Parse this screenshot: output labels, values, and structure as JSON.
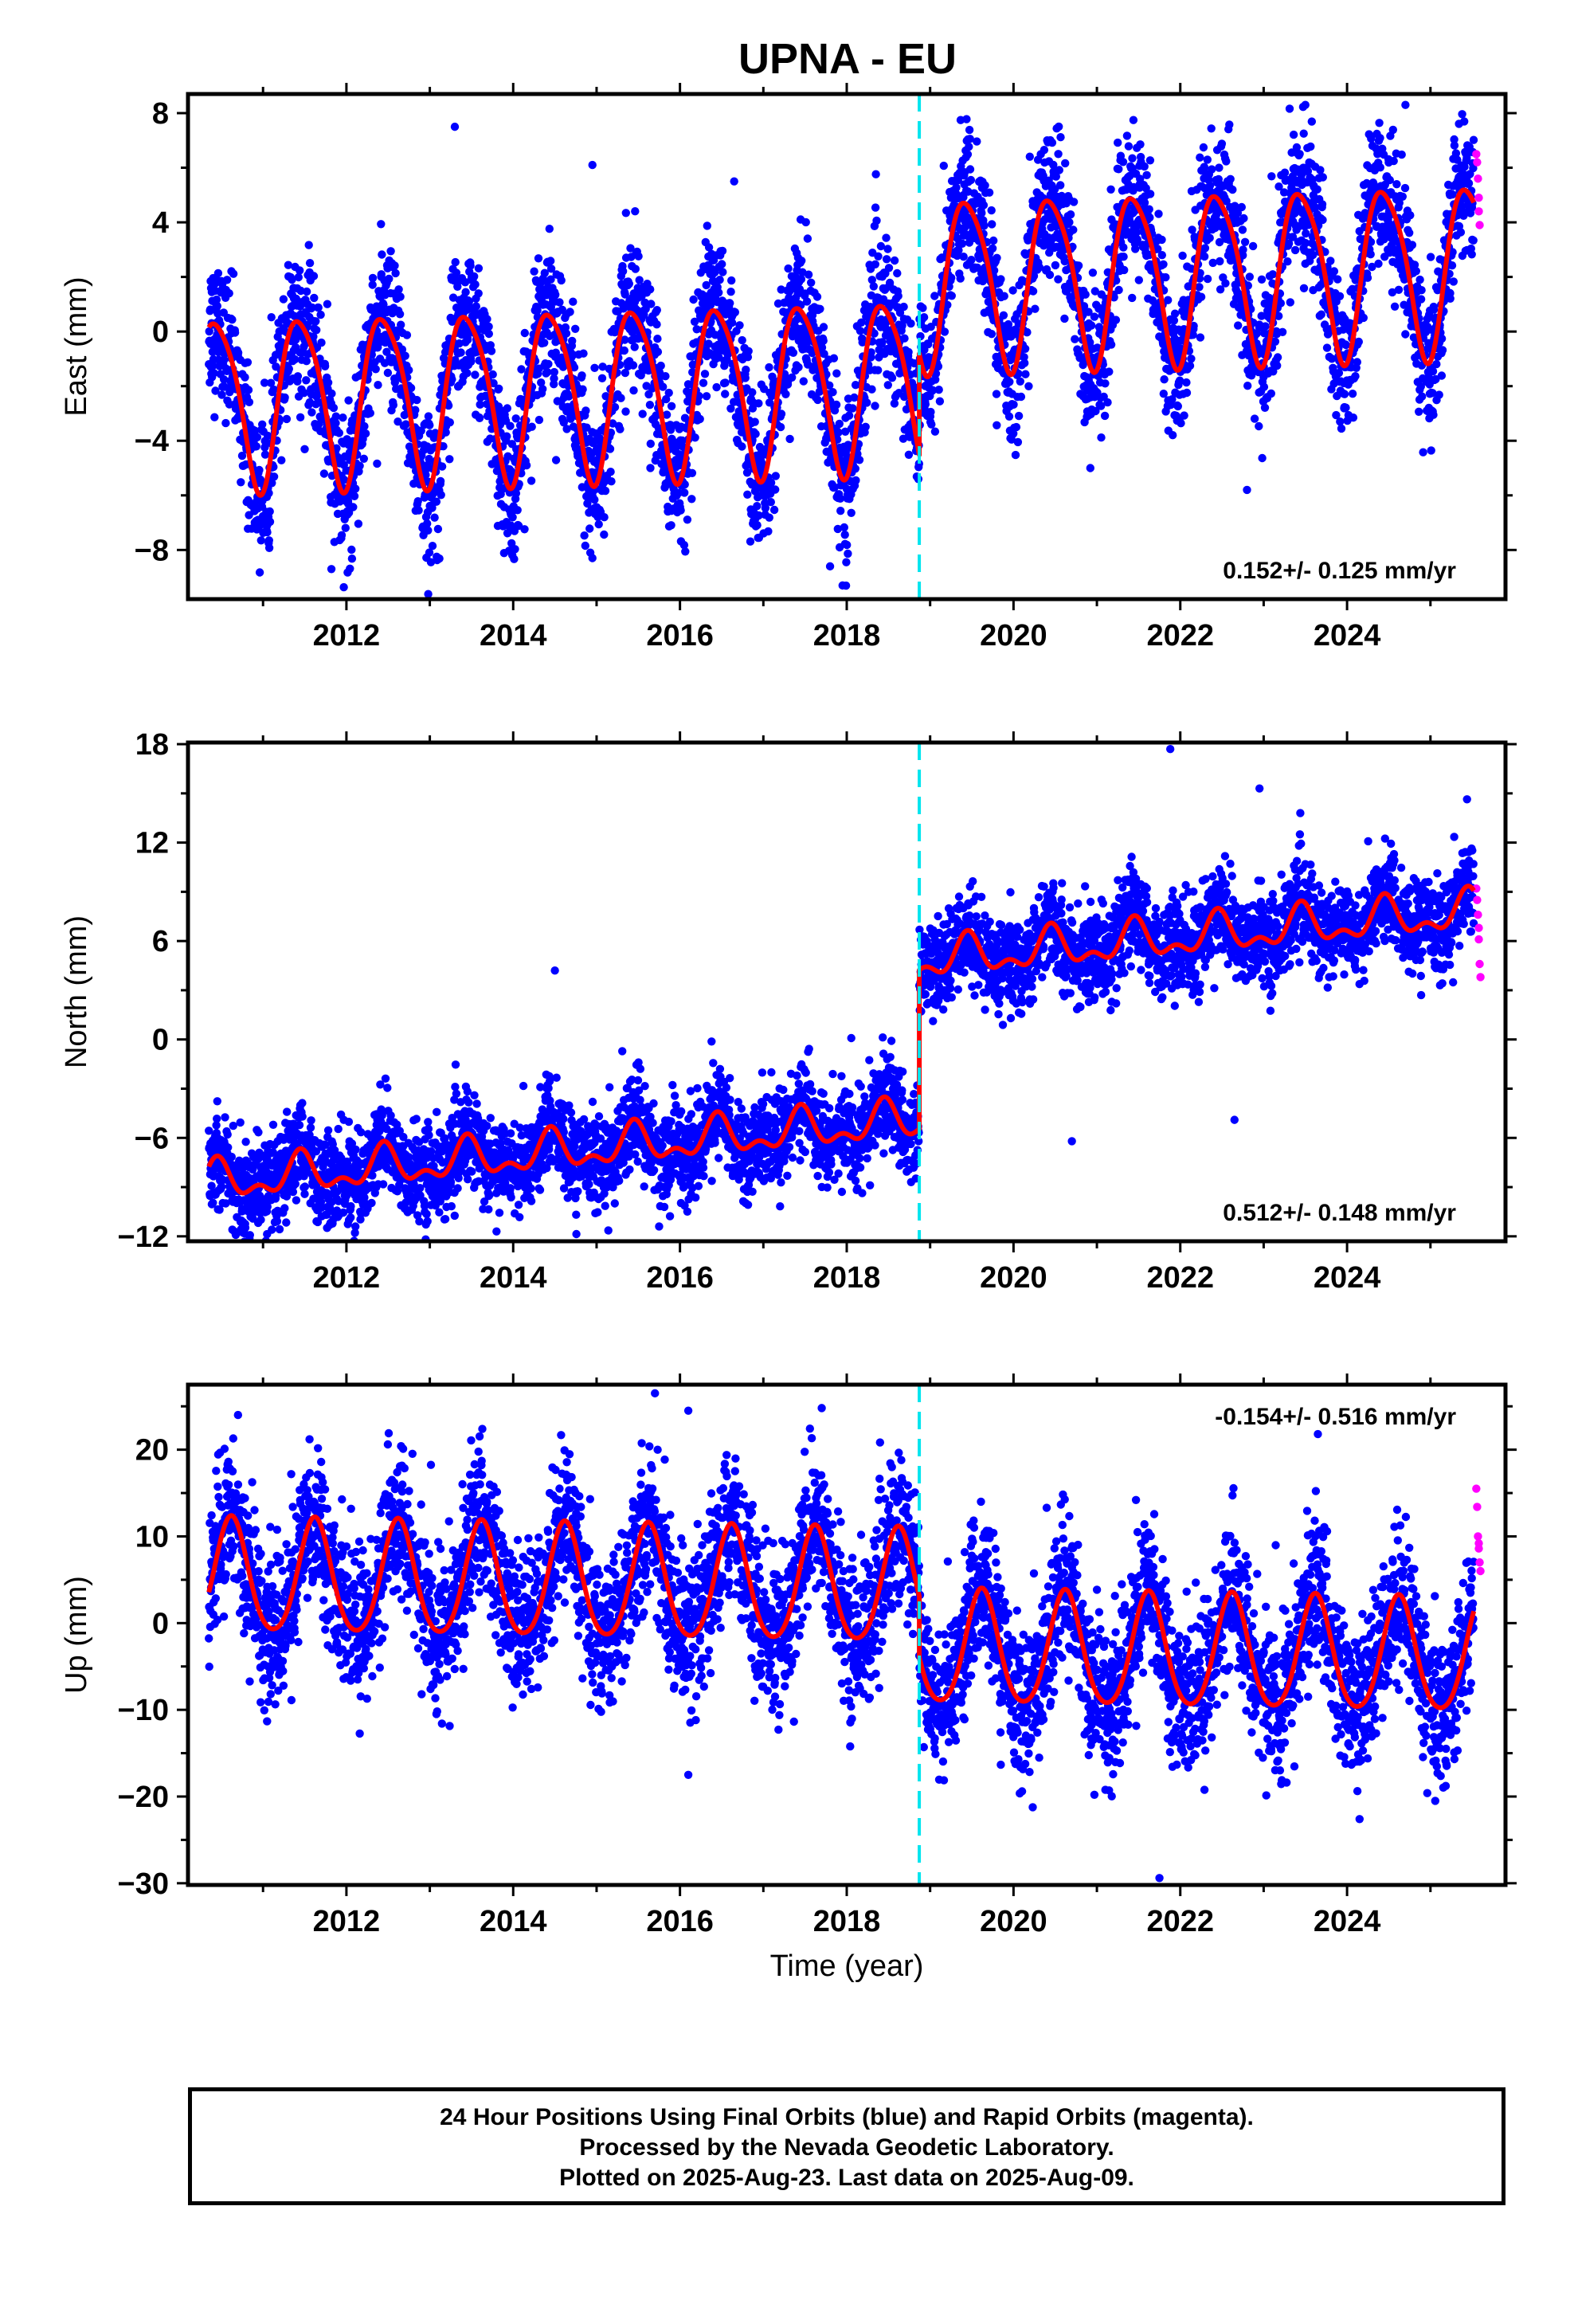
{
  "title": "UPNA - EU",
  "colors": {
    "final_orbits": "#0000ff",
    "rapid_orbits": "#ff00ff",
    "model_fit": "#ff0000",
    "equipment_change": "#00e5ee"
  },
  "footer": {
    "line1": "24 Hour Positions Using Final Orbits (blue) and Rapid Orbits (magenta).",
    "line2": "Processed by the Nevada Geodetic Laboratory.",
    "line3": "Plotted on 2025-Aug-23. Last data on 2025-Aug-09."
  },
  "chart_data": [
    {
      "type": "scatter",
      "component": "east",
      "title": "UPNA - EU",
      "xlabel": "",
      "ylabel": "East (mm)",
      "xlim": [
        2010.1,
        2025.9
      ],
      "ylim": [
        -9.8,
        8.7
      ],
      "xticks": [
        2012,
        2014,
        2016,
        2018,
        2020,
        2022,
        2024
      ],
      "xtick_labels": [
        "2012",
        "2014",
        "2016",
        "2018",
        "2020",
        "2022",
        "2024"
      ],
      "yticks": [
        -8,
        -4,
        0,
        4,
        8
      ],
      "ytick_labels": [
        "−8",
        "−4",
        "0",
        "4",
        "8"
      ],
      "grid": false,
      "rate_label": "0.152+/- 0.125 mm/yr",
      "rate_position": "bottom-right",
      "data_span": [
        2010.35,
        2025.52
      ],
      "step_epoch": 2018.87,
      "fit": {
        "offset_before": -1.9,
        "offset_after": 1.8,
        "trend": 0.08,
        "annual_amp": 3.1,
        "annual_peak": 0.45,
        "semiannual_amp": 0.5,
        "semiannual_peak": 0.25
      },
      "scatter_sd": 1.3,
      "rapid_points": [
        [
          2025.55,
          6.5
        ],
        [
          2025.56,
          6.2
        ],
        [
          2025.57,
          5.6
        ],
        [
          2025.58,
          4.9
        ],
        [
          2025.58,
          4.4
        ],
        [
          2025.59,
          3.9
        ]
      ],
      "outliers": [
        [
          2013.3,
          7.5
        ],
        [
          2014.95,
          6.1
        ],
        [
          2016.65,
          5.5
        ],
        [
          2022.8,
          -5.8
        ],
        [
          2017.95,
          -9.3
        ],
        [
          2017.8,
          -8.6
        ],
        [
          2011.82,
          -8.7
        ],
        [
          2024.7,
          8.3
        ],
        [
          2023.5,
          8.3
        ]
      ]
    },
    {
      "type": "scatter",
      "component": "north",
      "title": "",
      "xlabel": "",
      "ylabel": "North (mm)",
      "xlim": [
        2010.1,
        2025.9
      ],
      "ylim": [
        -12.3,
        18.1
      ],
      "xticks": [
        2012,
        2014,
        2016,
        2018,
        2020,
        2022,
        2024
      ],
      "xtick_labels": [
        "2012",
        "2014",
        "2016",
        "2018",
        "2020",
        "2022",
        "2024"
      ],
      "yticks": [
        -12,
        -6,
        0,
        6,
        12,
        18
      ],
      "ytick_labels": [
        "−12",
        "−6",
        "0",
        "6",
        "12",
        "18"
      ],
      "grid": false,
      "rate_label": "0.512+/- 0.148 mm/yr",
      "rate_position": "bottom-right",
      "data_span": [
        2010.35,
        2025.52
      ],
      "step_epoch": 2018.87,
      "fit": {
        "offset_before": -5.3,
        "offset_after": 4.4,
        "trend": 0.45,
        "annual_amp": 1.0,
        "annual_peak": 0.45,
        "semiannual_amp": 0.6,
        "semiannual_peak": 0.45
      },
      "scatter_sd": 1.4,
      "rapid_points": [
        [
          2025.55,
          9.2
        ],
        [
          2025.56,
          8.5
        ],
        [
          2025.57,
          7.6
        ],
        [
          2025.58,
          6.8
        ],
        [
          2025.58,
          6.1
        ],
        [
          2025.59,
          4.6
        ],
        [
          2025.6,
          3.8
        ]
      ],
      "outliers": [
        [
          2021.88,
          17.7
        ],
        [
          2022.95,
          15.3
        ],
        [
          2014.5,
          4.2
        ],
        [
          2020.7,
          -6.2
        ],
        [
          2022.65,
          -4.9
        ],
        [
          2013.8,
          -11.7
        ],
        [
          2015.75,
          -11.4
        ],
        [
          2011.8,
          -11.3
        ]
      ]
    },
    {
      "type": "scatter",
      "component": "up",
      "title": "",
      "xlabel": "Time (year)",
      "ylabel": "Up (mm)",
      "xlim": [
        2010.1,
        2025.9
      ],
      "ylim": [
        -30.2,
        27.5
      ],
      "xticks": [
        2012,
        2014,
        2016,
        2018,
        2020,
        2022,
        2024
      ],
      "xtick_labels": [
        "2012",
        "2014",
        "2016",
        "2018",
        "2020",
        "2022",
        "2024"
      ],
      "yticks": [
        -30,
        -20,
        -10,
        0,
        10,
        20
      ],
      "ytick_labels": [
        "−30",
        "−20",
        "−10",
        "0",
        "10",
        "20"
      ],
      "grid": false,
      "rate_label": "-0.154+/- 0.516 mm/yr",
      "rate_position": "top-right",
      "data_span": [
        2010.35,
        2025.52
      ],
      "step_epoch": 2018.87,
      "fit": {
        "offset_before": 4.0,
        "offset_after": -3.0,
        "trend": -0.15,
        "annual_amp": 6.5,
        "annual_peak": 0.62,
        "semiannual_amp": 0.8,
        "semiannual_peak": 0.62
      },
      "scatter_sd": 4.3,
      "rapid_points": [
        [
          2025.55,
          15.5
        ],
        [
          2025.56,
          13.4
        ],
        [
          2025.57,
          10.0
        ],
        [
          2025.58,
          9.2
        ],
        [
          2025.58,
          8.6
        ],
        [
          2025.59,
          7.0
        ],
        [
          2025.6,
          6.0
        ]
      ],
      "outliers": [
        [
          2010.7,
          24.0
        ],
        [
          2015.7,
          26.5
        ],
        [
          2016.1,
          24.5
        ],
        [
          2017.7,
          24.8
        ],
        [
          2023.65,
          21.8
        ],
        [
          2021.75,
          -29.4
        ],
        [
          2024.15,
          -22.6
        ],
        [
          2016.1,
          -17.5
        ]
      ]
    }
  ]
}
